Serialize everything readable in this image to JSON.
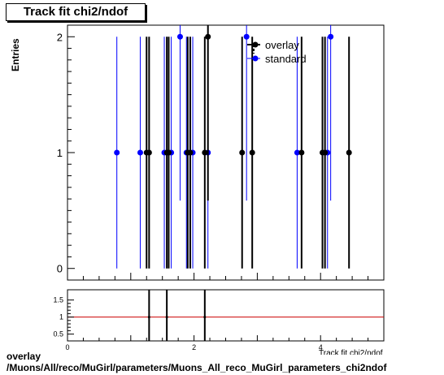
{
  "title": "Track fit chi2/ndof",
  "ylabel": "Entries",
  "xlabel_partial": "Track fit chi2/ndof",
  "footer_line1": "overlay",
  "footer_line2": "/Muons/All/reco/MuGirl/parameters/Muons_All_reco_MuGirl_parameters_chi2ndof",
  "colors": {
    "overlay": "#000000",
    "standard": "#0000ff",
    "ratio_line": "#cc0000"
  },
  "chart_data": [
    {
      "type": "scatter",
      "title": "Track fit chi2/ndof",
      "ylabel": "Entries",
      "xlim": [
        0,
        5
      ],
      "ylim": [
        -0.1,
        2.1
      ],
      "yticks": [
        "0",
        "1",
        "2"
      ],
      "legend": {
        "placement": "top-right",
        "entries": [
          "overlay",
          "standard"
        ]
      },
      "series": [
        {
          "name": "overlay",
          "points": [
            [
              1.25,
              1
            ],
            [
              1.29,
              1
            ],
            [
              1.57,
              1
            ],
            [
              1.6,
              1
            ],
            [
              1.9,
              1
            ],
            [
              1.94,
              1
            ],
            [
              2.17,
              1
            ],
            [
              2.22,
              2
            ],
            [
              2.76,
              1
            ],
            [
              2.92,
              1
            ],
            [
              3.7,
              1
            ],
            [
              4.03,
              1
            ],
            [
              4.07,
              1
            ],
            [
              4.45,
              1
            ]
          ]
        },
        {
          "name": "standard",
          "points": [
            [
              0.78,
              1
            ],
            [
              1.15,
              1
            ],
            [
              1.53,
              1
            ],
            [
              1.64,
              1
            ],
            [
              1.78,
              2
            ],
            [
              1.88,
              1
            ],
            [
              1.98,
              1
            ],
            [
              2.22,
              1
            ],
            [
              2.83,
              2
            ],
            [
              3.63,
              1
            ],
            [
              4.11,
              1
            ],
            [
              4.16,
              2
            ]
          ]
        }
      ]
    },
    {
      "type": "scatter",
      "xlim": [
        0,
        5
      ],
      "ylim": [
        0.3,
        1.8
      ],
      "yticks": [
        "0.5",
        "1",
        "1.5"
      ],
      "xticks": [
        "0",
        "2",
        "4"
      ],
      "reference_line": 1,
      "points": [
        [
          1.29,
          1
        ],
        [
          1.57,
          1
        ],
        [
          2.17,
          1
        ]
      ]
    }
  ]
}
